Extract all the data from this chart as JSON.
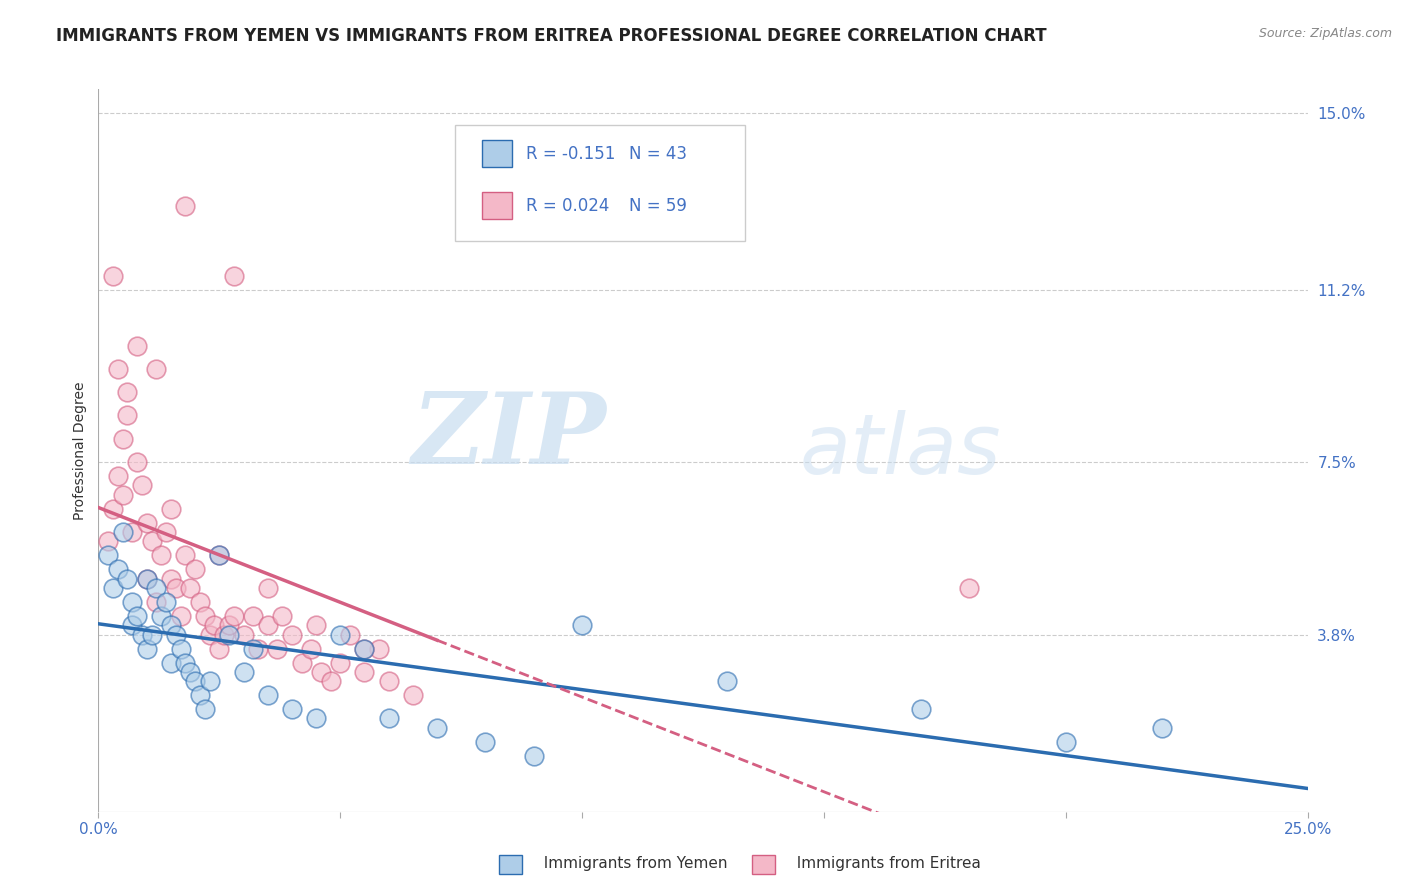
{
  "title": "IMMIGRANTS FROM YEMEN VS IMMIGRANTS FROM ERITREA PROFESSIONAL DEGREE CORRELATION CHART",
  "source": "Source: ZipAtlas.com",
  "xlabel_blue": "Immigrants from Yemen",
  "xlabel_pink": "Immigrants from Eritrea",
  "ylabel": "Professional Degree",
  "xlim": [
    0.0,
    0.25
  ],
  "ylim": [
    0.0,
    0.155
  ],
  "ytick_right": [
    0.038,
    0.075,
    0.112,
    0.15
  ],
  "ytick_right_labels": [
    "3.8%",
    "7.5%",
    "11.2%",
    "15.0%"
  ],
  "legend_R_blue": "R = -0.151",
  "legend_N_blue": "N = 43",
  "legend_R_pink": "R = 0.024",
  "legend_N_pink": "N = 59",
  "blue_color": "#aecde8",
  "pink_color": "#f4b8c8",
  "trend_blue_color": "#2b6cb0",
  "trend_pink_color": "#d45f82",
  "background_color": "#ffffff",
  "grid_color": "#cccccc",
  "accent_color": "#4472c4",
  "blue_scatter_x": [
    0.002,
    0.003,
    0.004,
    0.005,
    0.006,
    0.007,
    0.007,
    0.008,
    0.009,
    0.01,
    0.01,
    0.011,
    0.012,
    0.013,
    0.014,
    0.015,
    0.015,
    0.016,
    0.017,
    0.018,
    0.019,
    0.02,
    0.021,
    0.022,
    0.023,
    0.025,
    0.027,
    0.03,
    0.032,
    0.035,
    0.04,
    0.045,
    0.05,
    0.055,
    0.06,
    0.07,
    0.08,
    0.09,
    0.1,
    0.13,
    0.17,
    0.2,
    0.22
  ],
  "blue_scatter_y": [
    0.055,
    0.048,
    0.052,
    0.06,
    0.05,
    0.045,
    0.04,
    0.042,
    0.038,
    0.05,
    0.035,
    0.038,
    0.048,
    0.042,
    0.045,
    0.04,
    0.032,
    0.038,
    0.035,
    0.032,
    0.03,
    0.028,
    0.025,
    0.022,
    0.028,
    0.055,
    0.038,
    0.03,
    0.035,
    0.025,
    0.022,
    0.02,
    0.038,
    0.035,
    0.02,
    0.018,
    0.015,
    0.012,
    0.04,
    0.028,
    0.022,
    0.015,
    0.018
  ],
  "pink_scatter_x": [
    0.002,
    0.003,
    0.004,
    0.005,
    0.005,
    0.006,
    0.007,
    0.008,
    0.009,
    0.01,
    0.01,
    0.011,
    0.012,
    0.013,
    0.014,
    0.015,
    0.015,
    0.016,
    0.017,
    0.018,
    0.019,
    0.02,
    0.021,
    0.022,
    0.023,
    0.024,
    0.025,
    0.026,
    0.027,
    0.028,
    0.03,
    0.032,
    0.033,
    0.035,
    0.037,
    0.038,
    0.04,
    0.042,
    0.044,
    0.046,
    0.048,
    0.05,
    0.052,
    0.055,
    0.058,
    0.06,
    0.065,
    0.028,
    0.018,
    0.012,
    0.008,
    0.006,
    0.004,
    0.003,
    0.025,
    0.035,
    0.045,
    0.055,
    0.18
  ],
  "pink_scatter_y": [
    0.058,
    0.065,
    0.072,
    0.068,
    0.08,
    0.09,
    0.06,
    0.075,
    0.07,
    0.05,
    0.062,
    0.058,
    0.045,
    0.055,
    0.06,
    0.065,
    0.05,
    0.048,
    0.042,
    0.055,
    0.048,
    0.052,
    0.045,
    0.042,
    0.038,
    0.04,
    0.035,
    0.038,
    0.04,
    0.042,
    0.038,
    0.042,
    0.035,
    0.04,
    0.035,
    0.042,
    0.038,
    0.032,
    0.035,
    0.03,
    0.028,
    0.032,
    0.038,
    0.03,
    0.035,
    0.028,
    0.025,
    0.115,
    0.13,
    0.095,
    0.1,
    0.085,
    0.095,
    0.115,
    0.055,
    0.048,
    0.04,
    0.035,
    0.048
  ],
  "watermark_zip": "ZIP",
  "watermark_atlas": "atlas",
  "title_fontsize": 12,
  "axis_label_fontsize": 10,
  "tick_fontsize": 11,
  "legend_fontsize": 12
}
